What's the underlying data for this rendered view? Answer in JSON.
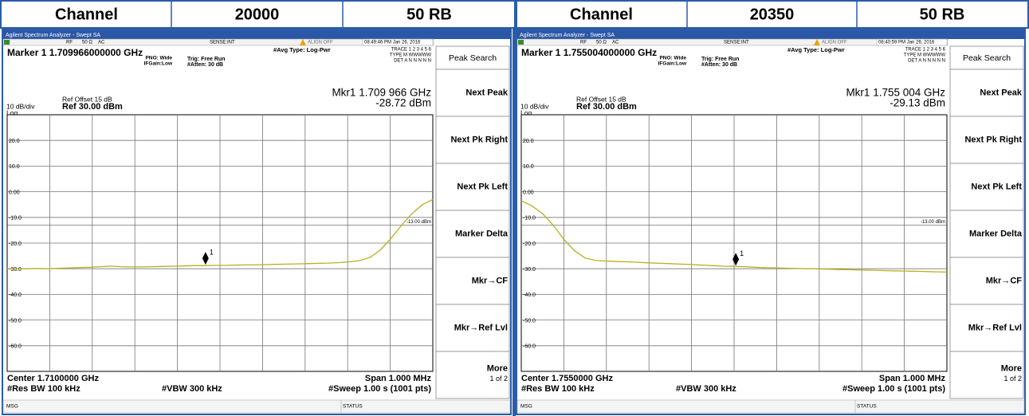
{
  "header": {
    "cells": [
      "Channel",
      "20000",
      "50 RB",
      "Channel",
      "20350",
      "50 RB"
    ]
  },
  "panels": [
    {
      "window_title": "Agilent Spectrum Analyzer - Swept SA",
      "status": {
        "rf": "RF",
        "impedance": "50 Ω",
        "coupling": "AC",
        "sense": "SENSE:INT",
        "align": "ALIGN OFF",
        "time": "08:49:46 PM Jan 26, 2016"
      },
      "avg_type": "#Avg Type: Log-Pwr",
      "trace_info": [
        "TRACE 1 2 3 4 5 6",
        "TYPE M WWWWW",
        "DET A N N N N N"
      ],
      "marker_title": "Marker 1 1.709966000000 GHz",
      "pno": "PNO: Wide",
      "ifgain": "IFGain:Low",
      "trig": "Trig: Free Run",
      "atten": "#Atten: 30 dB",
      "ref_offset": "Ref Offset 15 dB",
      "scale": "10 dB/div",
      "ref_level": "Ref 30.00 dBm",
      "log": "Log",
      "marker_freq": "Mkr1 1.709 966 GHz",
      "marker_amp": "-28.72 dBm",
      "yticks": [
        {
          "value": 20,
          "label": "20.0"
        },
        {
          "value": 10,
          "label": "10.0"
        },
        {
          "value": 0,
          "label": "0.00"
        },
        {
          "value": -10,
          "label": "-10.0"
        },
        {
          "value": -20,
          "label": "-20.0"
        },
        {
          "value": -30,
          "label": "-30.0"
        },
        {
          "value": -40,
          "label": "-40.0"
        },
        {
          "value": -50,
          "label": "-50.0"
        },
        {
          "value": -60,
          "label": "-60.0"
        }
      ],
      "trace": {
        "ylim": [
          -70,
          30
        ],
        "xlim": [
          1.7095,
          1.7105
        ],
        "color": "#b8b020",
        "values": [
          -30.0,
          -30.1,
          -30.0,
          -29.9,
          -30.0,
          -29.8,
          -29.7,
          -29.5,
          -29.4,
          -29.2,
          -29.0,
          -29.2,
          -29.3,
          -29.3,
          -29.2,
          -29.1,
          -29.0,
          -28.9,
          -28.8,
          -28.8,
          -28.7,
          -28.7,
          -28.6,
          -28.5,
          -28.5,
          -28.4,
          -28.3,
          -28.2,
          -28.1,
          -28.0,
          -27.9,
          -27.8,
          -27.6,
          -27.3,
          -26.8,
          -25.5,
          -22.5,
          -18.0,
          -13.0,
          -8.5,
          -5.0,
          -3.0
        ]
      },
      "display_line": {
        "value": -13,
        "label": "-13.00 dBm"
      },
      "marker": {
        "label": "1",
        "x": 1.709966,
        "value": -28.72
      },
      "center": "Center 1.7100000 GHz",
      "span": "Span 1.000 MHz",
      "res_bw": "#Res BW 100 kHz",
      "vbw": "#VBW 300 kHz",
      "sweep": "#Sweep  1.00 s (1001 pts)",
      "msg": "MSG",
      "status_label": "STATUS",
      "softkey_title": "Peak Search",
      "softkeys": [
        "Next Peak",
        "Next Pk Right",
        "Next Pk Left",
        "Marker Delta",
        "Mkr→CF",
        "Mkr→Ref Lvl",
        "More"
      ],
      "page": "1 of 2"
    },
    {
      "window_title": "Agilent Spectrum Analyzer - Swept SA",
      "status": {
        "rf": "RF",
        "impedance": "50 Ω",
        "coupling": "AC",
        "sense": "SENSE:INT",
        "align": "ALIGN OFF",
        "time": "08:40:59 PM Jan 26, 2016"
      },
      "avg_type": "#Avg Type: Log-Pwr",
      "trace_info": [
        "TRACE 1 2 3 4 5 6",
        "TYPE M WWWWW",
        "DET A N N N N N"
      ],
      "marker_title": "Marker 1 1.755004000000 GHz",
      "pno": "PNO: Wide",
      "ifgain": "IFGain:Low",
      "trig": "Trig: Free Run",
      "atten": "#Atten: 30 dB",
      "ref_offset": "Ref Offset 15 dB",
      "scale": "10 dB/div",
      "ref_level": "Ref 30.00 dBm",
      "log": "Log",
      "marker_freq": "Mkr1 1.755 004 GHz",
      "marker_amp": "-29.13 dBm",
      "yticks": [
        {
          "value": 20,
          "label": "20.0"
        },
        {
          "value": 10,
          "label": "10.0"
        },
        {
          "value": 0,
          "label": "0.00"
        },
        {
          "value": -10,
          "label": "-10.0"
        },
        {
          "value": -20,
          "label": "-20.0"
        },
        {
          "value": -30,
          "label": "-30.0"
        },
        {
          "value": -40,
          "label": "-40.0"
        },
        {
          "value": -50,
          "label": "-50.0"
        },
        {
          "value": -60,
          "label": "-60.0"
        }
      ],
      "trace": {
        "ylim": [
          -70,
          30
        ],
        "xlim": [
          1.7545,
          1.7555
        ],
        "color": "#b8b020",
        "values": [
          -3.5,
          -5.5,
          -8.5,
          -13.0,
          -18.5,
          -23.0,
          -25.8,
          -26.8,
          -27.0,
          -27.2,
          -27.3,
          -27.5,
          -27.7,
          -27.9,
          -28.0,
          -28.2,
          -28.4,
          -28.6,
          -28.8,
          -29.0,
          -29.1,
          -29.2,
          -29.4,
          -29.6,
          -29.7,
          -29.8,
          -29.9,
          -30.0,
          -30.1,
          -30.2,
          -30.3,
          -30.4,
          -30.5,
          -30.6,
          -30.7,
          -30.8,
          -30.9,
          -31.0,
          -31.1,
          -31.2,
          -31.3
        ]
      },
      "display_line": {
        "value": -13,
        "label": "-13.00 dBm"
      },
      "marker": {
        "label": "1",
        "x": 1.755004,
        "value": -29.13
      },
      "center": "Center 1.7550000 GHz",
      "span": "Span 1.000 MHz",
      "res_bw": "#Res BW 100 kHz",
      "vbw": "#VBW 300 kHz",
      "sweep": "#Sweep  1.00 s (1001 pts)",
      "msg": "MSG",
      "status_label": "STATUS",
      "softkey_title": "Peak Search",
      "softkeys": [
        "Next Peak",
        "Next Pk Right",
        "Next Pk Left",
        "Marker Delta",
        "Mkr→CF",
        "Mkr→Ref Lvl",
        "More"
      ],
      "page": "1 of 2"
    }
  ]
}
